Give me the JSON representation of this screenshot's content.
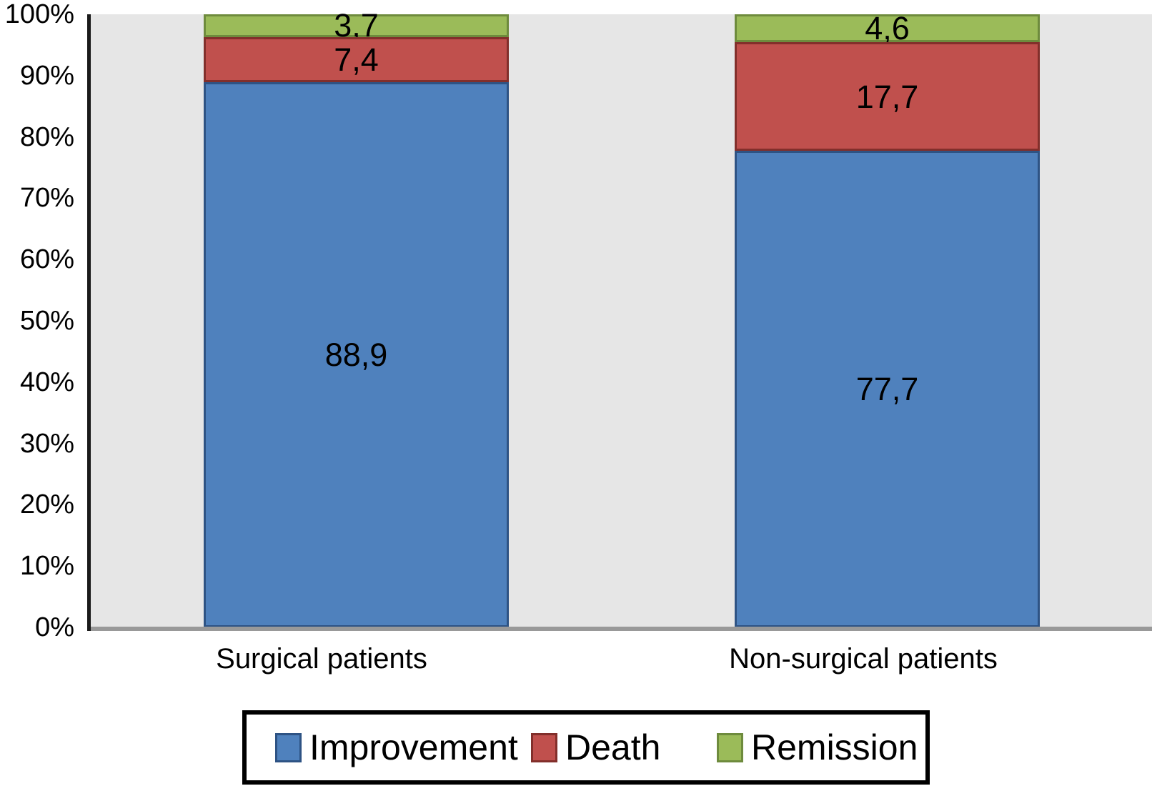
{
  "chart_data": {
    "type": "bar",
    "variant": "stacked-100-percent",
    "title": "",
    "xlabel": "",
    "ylabel": "",
    "categories": [
      "Surgical patients",
      "Non-surgical patients"
    ],
    "series": [
      {
        "name": "Improvement",
        "color": "#4F81BD",
        "border_color": "#2E5384",
        "values": [
          88.9,
          77.7
        ],
        "value_labels": [
          "88,9",
          "77,7"
        ]
      },
      {
        "name": "Death",
        "color": "#C0504D",
        "border_color": "#822F2B",
        "values": [
          7.4,
          17.7
        ],
        "value_labels": [
          "7,4",
          "17,7"
        ]
      },
      {
        "name": "Remission",
        "color": "#9BBB59",
        "border_color": "#6E8B3D",
        "values": [
          3.7,
          4.6
        ],
        "value_labels": [
          "3,7",
          "4,6"
        ]
      }
    ],
    "y_axis": {
      "min": 0,
      "max": 100,
      "step": 10,
      "tick_labels": [
        "0%",
        "10%",
        "20%",
        "30%",
        "40%",
        "50%",
        "60%",
        "70%",
        "80%",
        "90%",
        "100%"
      ]
    },
    "legend": {
      "position": "bottom",
      "entries": [
        "Improvement",
        "Death",
        "Remission"
      ]
    },
    "grid": false,
    "plot_background": "#E6E6E6",
    "axis_color": "#1A1A1A",
    "baseline_color": "#999999",
    "label_color": "#000000"
  }
}
